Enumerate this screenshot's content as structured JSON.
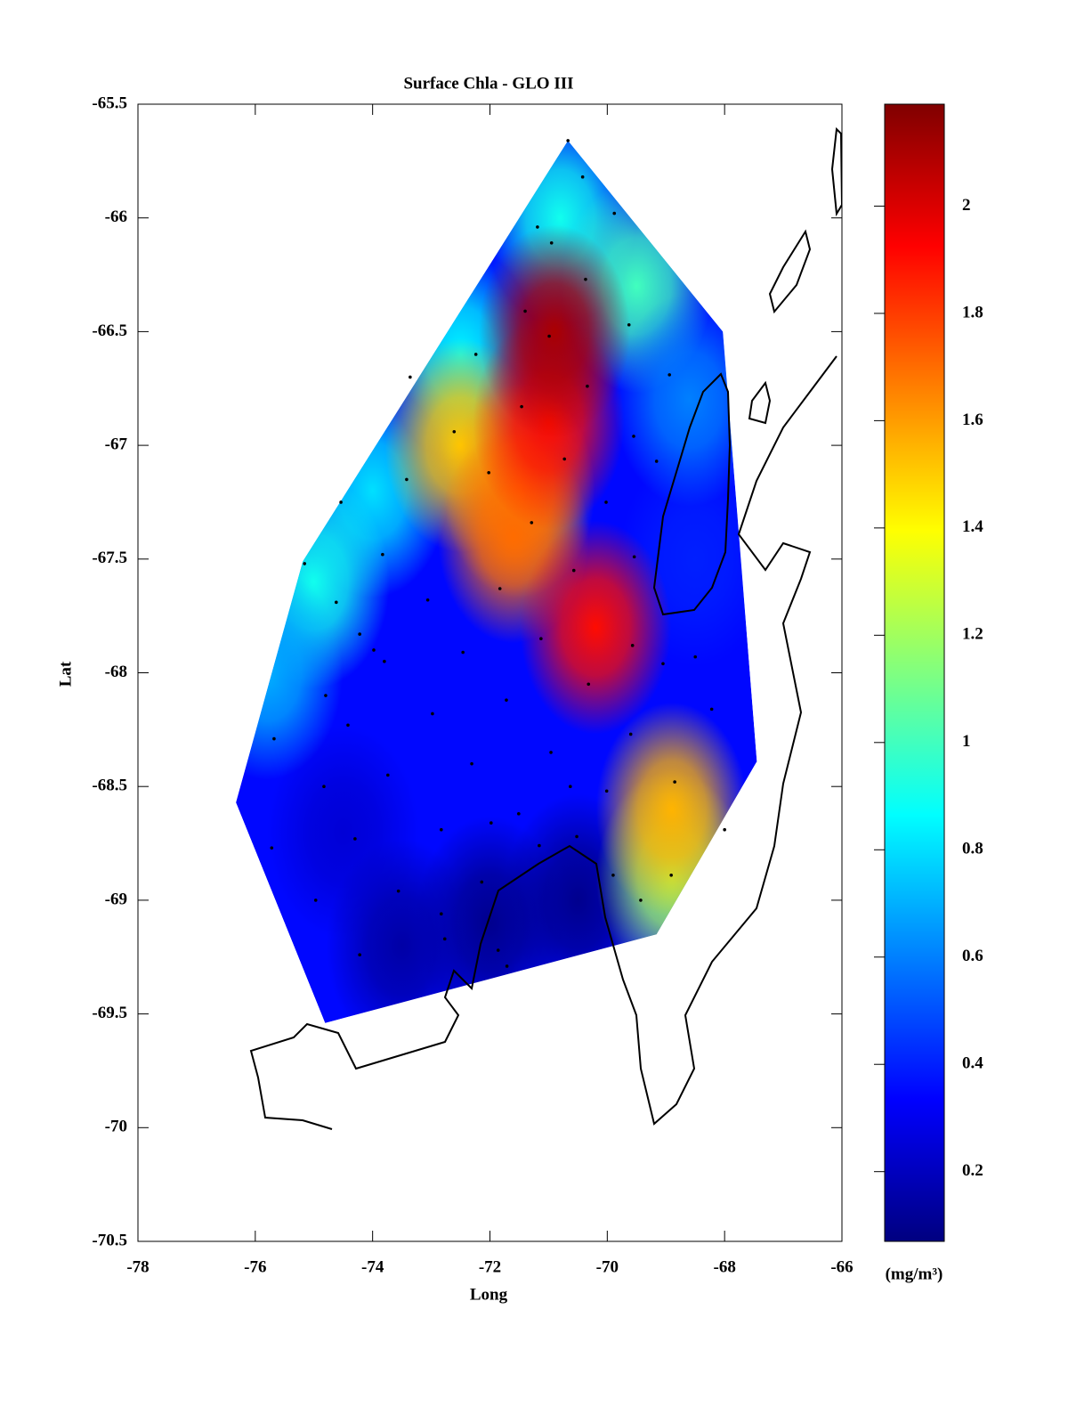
{
  "chart_data": {
    "type": "map",
    "title": "Surface Chla - GLO III",
    "xlabel": "Long",
    "ylabel": "Lat",
    "xlim": [
      -78,
      -66
    ],
    "ylim": [
      -70.5,
      -65.5
    ],
    "xticks": [
      -78,
      -76,
      -74,
      -72,
      -70,
      -68,
      -66
    ],
    "yticks": [
      -65.5,
      -66,
      -66.5,
      -67,
      -67.5,
      -68,
      -68.5,
      -69,
      -69.5,
      -70,
      -70.5
    ],
    "colorbar": {
      "label": "(mg/m³)",
      "lim": [
        0.07,
        2.19
      ],
      "ticks": [
        0.2,
        0.4,
        0.6,
        0.8,
        1,
        1.2,
        1.4,
        1.6,
        1.8,
        2
      ],
      "colormap": "jet"
    },
    "region": {
      "lon": [
        -70.67,
        -68.03,
        -67.45,
        -69.16,
        -74.81,
        -76.33,
        -75.19
      ],
      "lat": [
        -65.66,
        -66.5,
        -68.39,
        -69.15,
        -69.54,
        -68.57,
        -67.51
      ]
    },
    "field": {
      "background": 0.35,
      "lon": [
        -74.5,
        -72,
        -73.5,
        -70.5,
        -68.5,
        -70.8,
        -72.5,
        -74,
        -69.5,
        -75,
        -75.8,
        -68.6,
        -72.5,
        -71.5,
        -71.6,
        -68.9,
        -68.9,
        -71.0,
        -70.2,
        -70.9
      ],
      "lat": [
        -68.7,
        -69.1,
        -69.2,
        -69.0,
        -67.5,
        -66.0,
        -66.6,
        -67.2,
        -66.3,
        -67.6,
        -68.0,
        -66.8,
        -67.0,
        -67.2,
        -67.4,
        -68.9,
        -68.6,
        -66.9,
        -67.8,
        -66.5
      ],
      "values": [
        0.25,
        0.1,
        0.15,
        0.1,
        0.4,
        0.9,
        0.85,
        0.8,
        1.0,
        0.9,
        0.7,
        0.6,
        1.5,
        1.6,
        1.7,
        1.2,
        1.55,
        1.9,
        1.9,
        2.1
      ]
    },
    "stations": {
      "lon": [
        -70.67,
        -70.42,
        -69.88,
        -71.19,
        -70.95,
        -70.37,
        -71.4,
        -69.63,
        -70.99,
        -72.24,
        -68.94,
        -73.36,
        -70.34,
        -71.46,
        -72.61,
        -69.55,
        -70.73,
        -69.16,
        -72.02,
        -73.42,
        -70.02,
        -74.54,
        -71.29,
        -75.16,
        -73.83,
        -69.54,
        -71.83,
        -70.57,
        -73.06,
        -74.62,
        -74.22,
        -71.13,
        -69.57,
        -73.98,
        -72.46,
        -73.8,
        -69.05,
        -68.5,
        -74.8,
        -71.72,
        -70.32,
        -68.22,
        -72.98,
        -74.42,
        -75.68,
        -69.6,
        -70.96,
        -72.31,
        -73.74,
        -74.83,
        -70.63,
        -70.01,
        -68.85,
        -71.51,
        -71.98,
        -74.3,
        -75.72,
        -72.83,
        -70.52,
        -71.16,
        -68.0,
        -68.91,
        -69.9,
        -72.14,
        -73.56,
        -69.43,
        -74.97,
        -72.83,
        -72.77,
        -71.86,
        -74.22,
        -71.71
      ],
      "lat": [
        -65.66,
        -65.82,
        -65.98,
        -66.04,
        -66.11,
        -66.27,
        -66.41,
        -66.47,
        -66.52,
        -66.6,
        -66.69,
        -66.7,
        -66.74,
        -66.83,
        -66.94,
        -66.96,
        -67.06,
        -67.07,
        -67.12,
        -67.15,
        -67.25,
        -67.25,
        -67.34,
        -67.52,
        -67.48,
        -67.49,
        -67.63,
        -67.55,
        -67.68,
        -67.69,
        -67.83,
        -67.85,
        -67.88,
        -67.9,
        -67.91,
        -67.95,
        -67.96,
        -67.93,
        -68.1,
        -68.12,
        -68.05,
        -68.16,
        -68.18,
        -68.23,
        -68.29,
        -68.27,
        -68.35,
        -68.4,
        -68.45,
        -68.5,
        -68.5,
        -68.52,
        -68.48,
        -68.62,
        -68.66,
        -68.73,
        -68.77,
        -68.69,
        -68.72,
        -68.76,
        -68.69,
        -68.89,
        -68.89,
        -68.92,
        -68.96,
        -69.0,
        -69.0,
        -69.06,
        -69.17,
        -69.22,
        -69.24,
        -69.29
      ]
    }
  }
}
